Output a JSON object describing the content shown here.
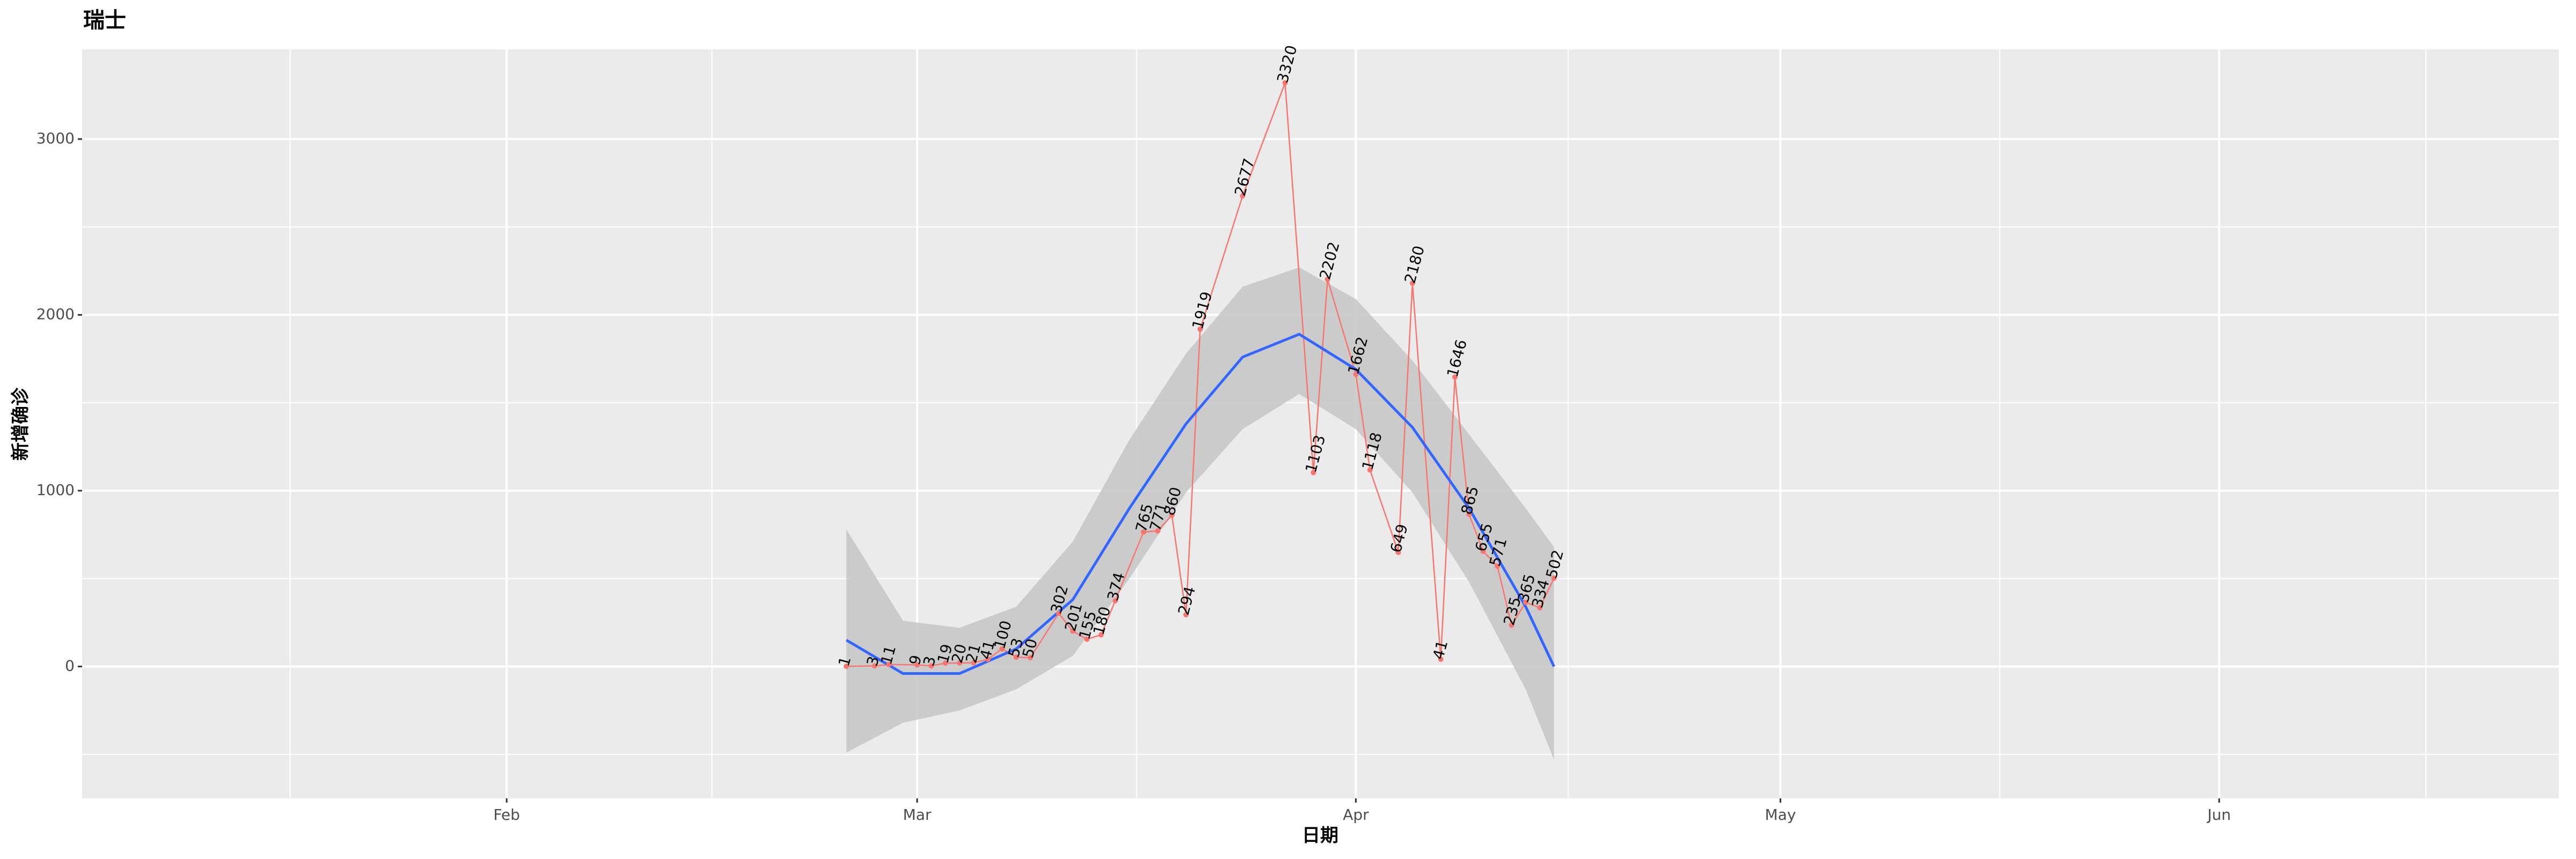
{
  "chart_data": {
    "type": "line",
    "title": "瑞士",
    "x_label": "日期",
    "y_label": "新增确诊",
    "x": [
      56,
      58,
      59,
      61,
      62,
      63,
      64,
      65,
      66,
      67,
      68,
      69,
      71,
      72,
      73,
      74,
      75,
      77,
      78,
      79,
      80,
      81,
      84,
      87,
      89,
      90,
      92,
      93,
      95,
      96,
      98,
      99,
      100,
      101,
      102,
      103,
      104,
      105,
      106
    ],
    "values": [
      1,
      3,
      11,
      9,
      3,
      19,
      20,
      21,
      41,
      100,
      53,
      50,
      302,
      201,
      155,
      180,
      374,
      765,
      771,
      860,
      294,
      1919,
      2677,
      3320,
      1103,
      2202,
      1662,
      1118,
      649,
      2180,
      41,
      1646,
      865,
      655,
      571,
      235,
      365,
      334,
      502
    ],
    "color": "#f8766d",
    "smooth": {
      "x": [
        56,
        60,
        64,
        68,
        72,
        76,
        80,
        84,
        88,
        92,
        96,
        100,
        104,
        106
      ],
      "values": [
        150,
        -40,
        -40,
        100,
        380,
        900,
        1380,
        1760,
        1890,
        1690,
        1360,
        900,
        340,
        0
      ],
      "lower": [
        -490,
        -320,
        -250,
        -130,
        60,
        500,
        990,
        1350,
        1550,
        1350,
        990,
        480,
        -130,
        -530
      ],
      "upper": [
        780,
        260,
        220,
        340,
        710,
        1290,
        1780,
        2160,
        2270,
        2090,
        1740,
        1320,
        900,
        680
      ],
      "color": "#3366ff",
      "band_color": "#c6c6c6"
    },
    "xlim": [
      2,
      177
    ],
    "ylim": [
      -750,
      3510
    ],
    "xticks": [
      {
        "value": 32,
        "label": "Feb"
      },
      {
        "value": 61,
        "label": "Mar"
      },
      {
        "value": 92,
        "label": "Apr"
      },
      {
        "value": 122,
        "label": "May"
      },
      {
        "value": 153,
        "label": "Jun"
      }
    ],
    "yticks": [
      0,
      1000,
      2000,
      3000
    ],
    "minor_xticks": [
      16.7,
      46.5,
      76.5,
      107,
      137.5,
      167.6
    ],
    "minor_yticks": [
      -500,
      500,
      1500,
      2500
    ],
    "grid": true
  }
}
